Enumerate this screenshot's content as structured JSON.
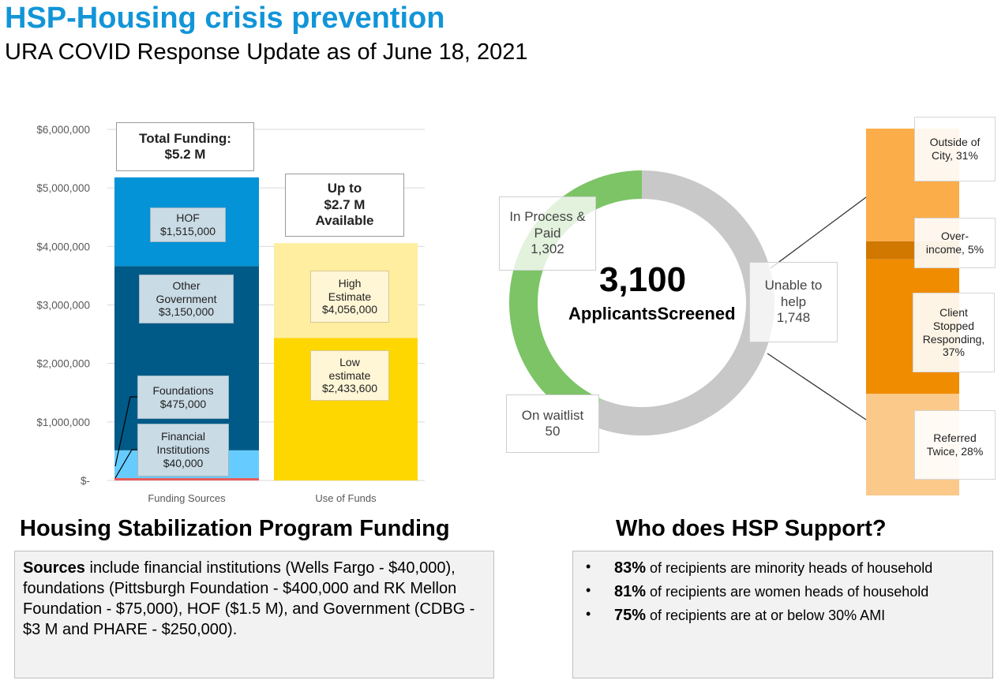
{
  "header": {
    "title": "HSP-Housing crisis prevention",
    "subtitle": "URA COVID Response Update as of June 18, 2021"
  },
  "chart_data": [
    {
      "type": "bar",
      "stacked": true,
      "categories": [
        "Funding Sources",
        "Use of Funds"
      ],
      "ylim": [
        0,
        6000000
      ],
      "yticks": [
        0,
        1000000,
        2000000,
        3000000,
        4000000,
        5000000,
        6000000
      ],
      "ytick_labels": [
        "$-",
        "$1,000,000",
        "$2,000,000",
        "$3,000,000",
        "$4,000,000",
        "$5,000,000",
        "$6,000,000"
      ],
      "grid": true,
      "series": [
        {
          "name": "Financial Institutions",
          "category": "Funding Sources",
          "value": 40000,
          "label": [
            "Financial",
            "Institutions",
            "$40,000"
          ],
          "color": "#e85a5a"
        },
        {
          "name": "Foundations",
          "category": "Funding Sources",
          "value": 475000,
          "label": [
            "Foundations",
            "$475,000"
          ],
          "color": "#66ccff"
        },
        {
          "name": "Other Government",
          "category": "Funding Sources",
          "value": 3150000,
          "label": [
            "Other",
            "Government",
            "$3,150,000"
          ],
          "color": "#005a87"
        },
        {
          "name": "HOF",
          "category": "Funding Sources",
          "value": 1515000,
          "label": [
            "HOF",
            "$1,515,000"
          ],
          "color": "#0393d6"
        },
        {
          "name": "Low estimate",
          "category": "Use of Funds",
          "value": 2433600,
          "label": [
            "Low",
            "estimate",
            "$2,433,600"
          ],
          "color": "#ffd700"
        },
        {
          "name": "High Estimate",
          "category": "Use of Funds",
          "value": 1622400,
          "label": [
            "High",
            "Estimate",
            "$4,056,000"
          ],
          "color": "#ffeea0"
        }
      ],
      "callouts": {
        "total_funding": [
          "Total Funding:",
          "$5.2 M"
        ],
        "available": [
          "Up to",
          "$2.7 M",
          "Available"
        ]
      }
    },
    {
      "type": "pie",
      "donut": true,
      "center": {
        "value": "3,100",
        "caption": [
          "Applicants",
          "Screened"
        ]
      },
      "slices": [
        {
          "name": "Unable to help",
          "value": 1748,
          "label": [
            "Unable to",
            "help",
            "1,748"
          ],
          "color": "#c8c8c8"
        },
        {
          "name": "On waitlist",
          "value": 50,
          "label": [
            "On waitlist",
            "50"
          ],
          "color": "#8ce07a"
        },
        {
          "name": "In Process & Paid",
          "value": 1302,
          "label": [
            "In Process &",
            "Paid",
            "1,302"
          ],
          "color": "#7cc466"
        }
      ]
    },
    {
      "type": "bar",
      "stacked": true,
      "percent": true,
      "segments": [
        {
          "name": "Referred Twice",
          "value": 28,
          "label": [
            "Referred",
            "Twice, 28%"
          ],
          "color": "#fbc98a"
        },
        {
          "name": "Client Stopped Responding",
          "value": 37,
          "label": [
            "Client",
            "Stopped",
            "Responding,",
            "37%"
          ],
          "color": "#f08c00"
        },
        {
          "name": "Over-income",
          "value": 5,
          "label": [
            "Over-",
            "income, 5%"
          ],
          "color": "#d07800"
        },
        {
          "name": "Outside of City",
          "value": 31,
          "label": [
            "Outside of",
            "City, 31%"
          ],
          "color": "#fbad4a"
        }
      ]
    }
  ],
  "funding_section": {
    "heading": "Housing Stabilization Program Funding",
    "sources_bold": "Sources",
    "sources_text": " include financial institutions (Wells Fargo - $40,000), foundations (Pittsburgh Foundation - $400,000 and RK Mellon Foundation - $75,000), HOF ($1.5 M), and Government (CDBG - $3 M and PHARE - $250,000)."
  },
  "support_section": {
    "heading": "Who does HSP Support?",
    "bullets": [
      {
        "bold": "83%",
        "text": " of recipients are minority heads of household"
      },
      {
        "bold": "81%",
        "text": " of recipients are women heads of household"
      },
      {
        "bold": "75%",
        "text": " of recipients are at or below 30% AMI"
      }
    ]
  }
}
